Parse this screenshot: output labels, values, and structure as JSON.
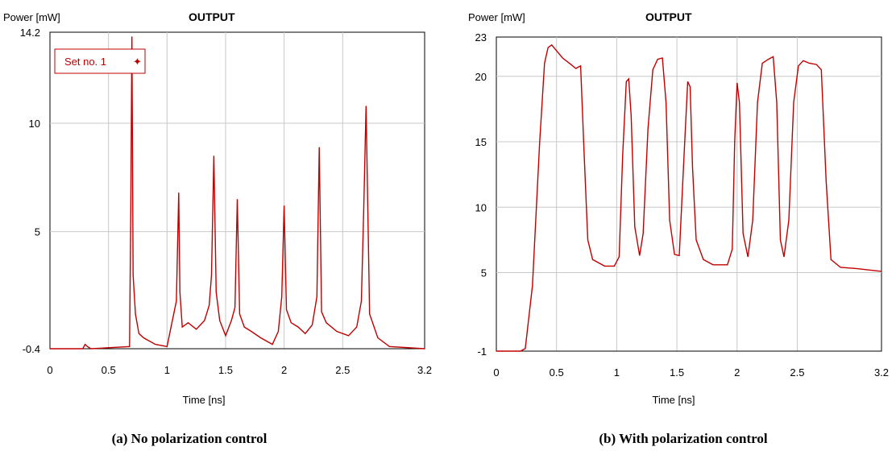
{
  "chart_data": [
    {
      "type": "line",
      "title": "OUTPUT",
      "ylabel": "Power [mW]",
      "xlabel": "Time [ns]",
      "caption": "(a) No polarization control",
      "legend": {
        "label": "Set no. 1",
        "marker": "✦",
        "placement": "top-left"
      },
      "xlim": [
        0,
        3.2
      ],
      "ylim": [
        -0.4,
        14.2
      ],
      "x_ticks": [
        "0",
        "0.5",
        "1",
        "1.5",
        "2",
        "2.5",
        "3.2"
      ],
      "y_ticks": [
        "14.2",
        "10",
        "5",
        "-0.4"
      ],
      "grid": true,
      "series": [
        {
          "name": "Set no. 1",
          "color": "#c00000",
          "x": [
            0,
            0.28,
            0.3,
            0.32,
            0.35,
            0.68,
            0.69,
            0.7,
            0.71,
            0.73,
            0.76,
            0.8,
            0.9,
            1.0,
            1.03,
            1.08,
            1.1,
            1.11,
            1.13,
            1.18,
            1.25,
            1.32,
            1.36,
            1.38,
            1.4,
            1.42,
            1.45,
            1.5,
            1.55,
            1.58,
            1.6,
            1.62,
            1.66,
            1.72,
            1.8,
            1.9,
            1.95,
            1.98,
            2.0,
            2.02,
            2.06,
            2.12,
            2.18,
            2.24,
            2.28,
            2.3,
            2.32,
            2.36,
            2.45,
            2.55,
            2.62,
            2.66,
            2.68,
            2.7,
            2.73,
            2.8,
            2.9,
            3.2
          ],
          "y": [
            -0.4,
            -0.4,
            -0.2,
            -0.3,
            -0.4,
            -0.3,
            6,
            14,
            3,
            1.2,
            0.3,
            0.1,
            -0.2,
            -0.3,
            0.5,
            1.8,
            6.8,
            2.2,
            0.6,
            0.8,
            0.5,
            0.9,
            1.6,
            3,
            8.5,
            2.2,
            0.9,
            0.2,
            0.9,
            1.5,
            6.5,
            1.2,
            0.6,
            0.4,
            0.1,
            -0.2,
            0.4,
            2,
            6.2,
            1.4,
            0.8,
            0.6,
            0.3,
            0.7,
            2,
            8.9,
            1.3,
            0.8,
            0.4,
            0.2,
            0.6,
            1.8,
            6,
            10.8,
            1.2,
            0.1,
            -0.3,
            -0.4
          ]
        }
      ]
    },
    {
      "type": "line",
      "title": "OUTPUT",
      "ylabel": "Power [mW]",
      "xlabel": "Time [ns]",
      "caption": "(b) With polarization control",
      "xlim": [
        0,
        3.2
      ],
      "ylim": [
        -1,
        23
      ],
      "x_ticks": [
        "0",
        "0.5",
        "1",
        "1.5",
        "2",
        "2.5",
        "3.2"
      ],
      "y_ticks": [
        "23",
        "20",
        "15",
        "10",
        "5",
        "-1"
      ],
      "grid": true,
      "series": [
        {
          "color": "#c00000",
          "x": [
            0,
            0.2,
            0.24,
            0.3,
            0.36,
            0.4,
            0.43,
            0.46,
            0.55,
            0.62,
            0.66,
            0.7,
            0.73,
            0.76,
            0.8,
            0.9,
            0.98,
            1.02,
            1.05,
            1.08,
            1.1,
            1.12,
            1.15,
            1.19,
            1.22,
            1.26,
            1.3,
            1.34,
            1.38,
            1.41,
            1.44,
            1.48,
            1.52,
            1.56,
            1.59,
            1.61,
            1.63,
            1.66,
            1.72,
            1.8,
            1.92,
            1.96,
            1.98,
            2.0,
            2.02,
            2.05,
            2.09,
            2.13,
            2.17,
            2.21,
            2.26,
            2.3,
            2.33,
            2.36,
            2.39,
            2.43,
            2.47,
            2.51,
            2.55,
            2.6,
            2.66,
            2.7,
            2.74,
            2.78,
            2.86,
            3.0,
            3.1,
            3.2
          ],
          "y": [
            -1,
            -1,
            -0.8,
            4,
            15,
            21,
            22.2,
            22.4,
            21.4,
            20.9,
            20.6,
            20.8,
            14,
            7.5,
            6,
            5.5,
            5.5,
            6.2,
            14,
            19.6,
            19.8,
            17,
            8.5,
            6.3,
            8,
            16,
            20.5,
            21.3,
            21.4,
            18,
            9,
            6.4,
            6.3,
            14,
            19.6,
            19.2,
            13,
            7.5,
            6,
            5.6,
            5.6,
            6.8,
            15,
            19.5,
            18,
            8,
            6.2,
            9,
            18,
            21,
            21.3,
            21.5,
            18,
            7.5,
            6.2,
            9,
            18,
            20.8,
            21.2,
            21,
            20.9,
            20.5,
            12,
            6,
            5.4,
            5.3,
            5.2,
            5.1
          ]
        }
      ]
    }
  ]
}
